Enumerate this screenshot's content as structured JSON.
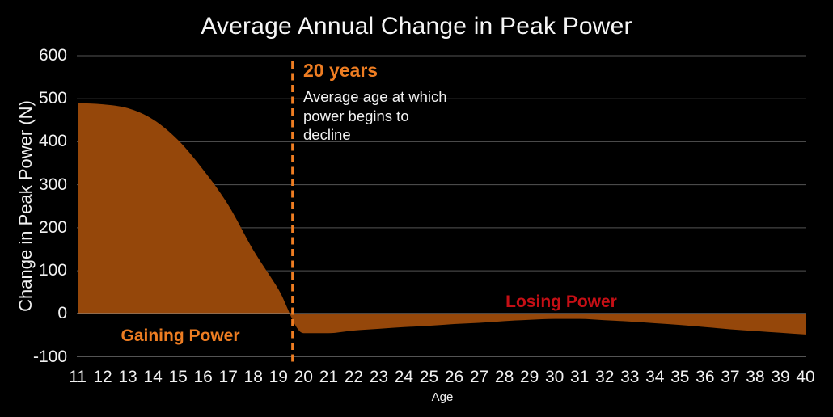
{
  "title": "Average Annual Change in Peak Power",
  "annotation": {
    "heading": "20 years",
    "lines": [
      "Average age at which",
      "power begins to",
      "decline"
    ],
    "line_age": 19.56
  },
  "region_labels": {
    "gaining": "Gaining Power",
    "losing": "Losing Power"
  },
  "colors": {
    "background": "#000000",
    "text": "#f1f1f1",
    "grid": "#545454",
    "zero_line": "#8f8f8f",
    "area": "#95470a",
    "accent_orange": "#ee7d22",
    "losing_red": "#c50f15"
  },
  "chart_data": {
    "type": "area",
    "title": "Average Annual Change in Peak Power",
    "xlabel": "Age",
    "ylabel": "Change in Peak Power (N)",
    "x": [
      11,
      12,
      13,
      14,
      15,
      16,
      17,
      18,
      19,
      20,
      21,
      22,
      23,
      24,
      25,
      26,
      27,
      28,
      29,
      30,
      31,
      32,
      33,
      34,
      35,
      36,
      37,
      38,
      39,
      40
    ],
    "values": [
      490,
      487,
      478,
      452,
      404,
      335,
      253,
      148,
      57,
      -45,
      -45,
      -39,
      -35,
      -31,
      -28,
      -24,
      -21,
      -17,
      -14,
      -12,
      -12,
      -15,
      -18,
      -22,
      -26,
      -31,
      -36,
      -40,
      -44,
      -48
    ],
    "xlim": [
      11,
      40
    ],
    "ylim": [
      -100,
      600
    ],
    "y_ticks": [
      600,
      500,
      400,
      300,
      200,
      100,
      0,
      -100
    ],
    "grid": true,
    "legend": "none",
    "zero_crossing_age": 19.56,
    "annotation_line_x": 19.56
  }
}
